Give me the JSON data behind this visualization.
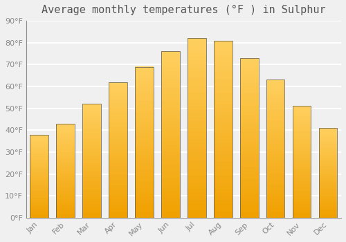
{
  "title": "Average monthly temperatures (°F ) in Sulphur",
  "months": [
    "Jan",
    "Feb",
    "Mar",
    "Apr",
    "May",
    "Jun",
    "Jul",
    "Aug",
    "Sep",
    "Oct",
    "Nov",
    "Dec"
  ],
  "values": [
    38,
    43,
    52,
    62,
    69,
    76,
    82,
    81,
    73,
    63,
    51,
    41
  ],
  "bar_color_dark": "#F0A000",
  "bar_color_light": "#FFD060",
  "bar_color_mid": "#FFC030",
  "ylim": [
    0,
    90
  ],
  "yticks": [
    0,
    10,
    20,
    30,
    40,
    50,
    60,
    70,
    80,
    90
  ],
  "ytick_labels": [
    "0°F",
    "10°F",
    "20°F",
    "30°F",
    "40°F",
    "50°F",
    "60°F",
    "70°F",
    "80°F",
    "90°F"
  ],
  "background_color": "#f0f0f0",
  "grid_color": "#ffffff",
  "title_fontsize": 11,
  "tick_fontsize": 8,
  "bar_edge_color": "#555555",
  "bar_width": 0.7
}
